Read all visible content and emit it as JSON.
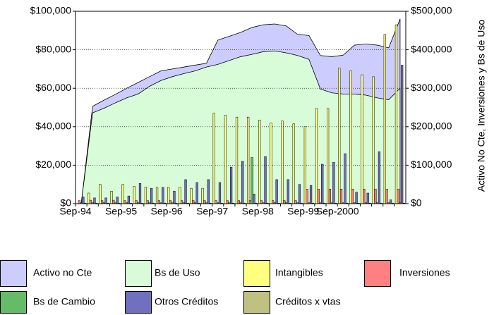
{
  "chart_data": {
    "type": "bar",
    "y2label": "Activo No Cte, Inversiones y Bs de Uso",
    "categories": [
      "Sep-94",
      null,
      null,
      null,
      "Sep-95",
      null,
      null,
      null,
      "Sep-96",
      null,
      null,
      null,
      "Sep-97",
      null,
      null,
      null,
      "Sep-98",
      null,
      null,
      null,
      "Sep-99",
      null,
      null,
      "Sep-2000",
      null,
      null,
      null,
      null,
      null
    ],
    "ylim": [
      0,
      100000
    ],
    "yticks": [
      {
        "value": 0,
        "label": "$0"
      },
      {
        "value": 20000,
        "label": "$20,000"
      },
      {
        "value": 40000,
        "label": "$40,000"
      },
      {
        "value": 60000,
        "label": "$60,000"
      },
      {
        "value": 80000,
        "label": "$80,000"
      },
      {
        "value": 100000,
        "label": "$100,000"
      }
    ],
    "y2lim": [
      0,
      500000
    ],
    "y2ticks": [
      {
        "value": 0,
        "label": "$0"
      },
      {
        "value": 100000,
        "label": "$100,000"
      },
      {
        "value": 200000,
        "label": "$200,000"
      },
      {
        "value": 300000,
        "label": "$300,000"
      },
      {
        "value": 400000,
        "label": "$400,000"
      },
      {
        "value": 500000,
        "label": "$500,000"
      }
    ],
    "grid": true,
    "series": [
      {
        "name": "Activo no Cte",
        "type": "area",
        "axis": "y2",
        "color": "#ccccff",
        "values": [
          0,
          253000,
          269000,
          284000,
          300000,
          315000,
          330000,
          345000,
          350000,
          355000,
          360000,
          365000,
          425000,
          435000,
          445000,
          458000,
          465000,
          467000,
          462000,
          440000,
          437000,
          385000,
          382000,
          386000,
          412000,
          415000,
          412000,
          405000,
          480000
        ]
      },
      {
        "name": "Bs de Uso",
        "type": "area",
        "axis": "y2",
        "color": "#d8fcd8",
        "values": [
          0,
          236000,
          248000,
          262000,
          275000,
          285000,
          305000,
          320000,
          330000,
          338000,
          345000,
          355000,
          362000,
          372000,
          382000,
          388000,
          395000,
          397000,
          392000,
          385000,
          375000,
          298000,
          288000,
          285000,
          285000,
          282000,
          275000,
          270000,
          300000
        ]
      },
      {
        "name": "Intangibles",
        "type": "bar",
        "color": "#ffff80",
        "values": [
          0,
          5500,
          10000,
          6500,
          10000,
          9000,
          8500,
          8500,
          8500,
          8500,
          8000,
          8000,
          47000,
          46000,
          45000,
          45000,
          43500,
          42000,
          43000,
          41500,
          40000,
          49500,
          49500,
          70500,
          69000,
          67000,
          66000,
          88000,
          93000
        ]
      },
      {
        "name": "Inversiones",
        "type": "bar",
        "axis": "y2",
        "color": "#ff8080",
        "values": [
          8000,
          9000,
          8000,
          9000,
          8000,
          8000,
          8000,
          8000,
          8000,
          8000,
          8000,
          8000,
          8000,
          8000,
          8000,
          8000,
          8000,
          8000,
          8000,
          8000,
          38000,
          38000,
          38000,
          38000,
          38000,
          38000,
          38000,
          38000,
          38000
        ]
      },
      {
        "name": "Bs de Cambio",
        "type": "bar",
        "color": "#66bb66",
        "values": [
          500,
          500,
          500,
          500,
          500,
          500,
          500,
          500,
          500,
          500,
          500,
          500,
          500,
          500,
          500,
          24000,
          500,
          500,
          500,
          500,
          500,
          500,
          500,
          500,
          500,
          500,
          500,
          500,
          500
        ]
      },
      {
        "name": "Otros Créditos",
        "type": "bar",
        "color": "#7070c0",
        "values": [
          3500,
          3000,
          3000,
          3500,
          4000,
          10500,
          8000,
          8500,
          6500,
          12500,
          11000,
          12500,
          11000,
          19000,
          22000,
          5000,
          24500,
          12500,
          12500,
          10000,
          9500,
          20500,
          21500,
          26000,
          6000,
          5500,
          27000,
          2000,
          72000
        ]
      },
      {
        "name": "Créditos x vtas",
        "type": "bar",
        "color": "#c0c080",
        "values": [
          300,
          300,
          300,
          300,
          300,
          300,
          300,
          300,
          300,
          300,
          300,
          300,
          300,
          300,
          300,
          300,
          300,
          300,
          300,
          300,
          300,
          300,
          300,
          300,
          300,
          300,
          300,
          300,
          300
        ]
      }
    ]
  }
}
